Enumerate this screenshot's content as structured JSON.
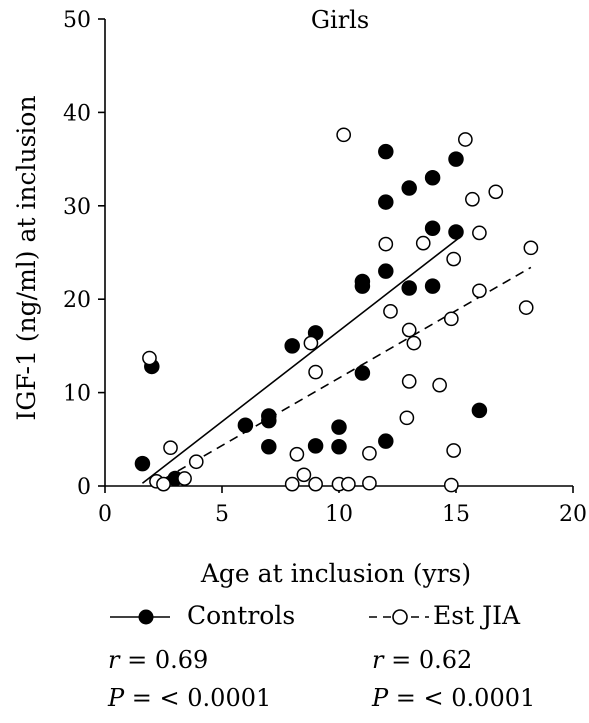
{
  "chart_data": {
    "type": "scatter",
    "title": "Girls",
    "xlabel": "Age at inclusion (yrs)",
    "ylabel": "IGF-1 (ng/ml) at inclusion",
    "xlim": [
      0,
      20
    ],
    "ylim": [
      0,
      50
    ],
    "x_ticks": [
      "0",
      "5",
      "10",
      "15",
      "20"
    ],
    "y_ticks": [
      "0",
      "10",
      "20",
      "30",
      "40",
      "50"
    ],
    "grid": false,
    "legend_position": "bottom",
    "series": [
      {
        "name": "Controls",
        "marker": "filled-circle",
        "line_style": "solid",
        "points": [
          [
            1.6,
            2.4
          ],
          [
            2.0,
            12.8
          ],
          [
            3.0,
            0.8
          ],
          [
            6.0,
            6.5
          ],
          [
            7.0,
            7.5
          ],
          [
            7.0,
            7.0
          ],
          [
            7.0,
            4.2
          ],
          [
            8.0,
            15.0
          ],
          [
            9.0,
            16.4
          ],
          [
            9.0,
            4.3
          ],
          [
            10.0,
            6.3
          ],
          [
            10.0,
            4.2
          ],
          [
            11.0,
            21.9
          ],
          [
            11.0,
            21.4
          ],
          [
            11.0,
            12.1
          ],
          [
            12.0,
            35.8
          ],
          [
            12.0,
            30.4
          ],
          [
            12.0,
            23.0
          ],
          [
            12.0,
            4.8
          ],
          [
            13.0,
            31.9
          ],
          [
            13.0,
            21.2
          ],
          [
            14.0,
            33.0
          ],
          [
            14.0,
            27.6
          ],
          [
            14.0,
            21.4
          ],
          [
            15.0,
            35.0
          ],
          [
            15.0,
            27.2
          ],
          [
            16.0,
            8.1
          ]
        ],
        "regression": {
          "x": [
            1.6,
            15.2
          ],
          "y": [
            0.3,
            26.7
          ]
        },
        "r": "0.69",
        "p": "< 0.0001"
      },
      {
        "name": "Est JIA",
        "marker": "open-circle",
        "line_style": "dashed",
        "points": [
          [
            1.9,
            13.7
          ],
          [
            2.2,
            0.5
          ],
          [
            2.5,
            0.2
          ],
          [
            2.8,
            4.1
          ],
          [
            3.4,
            0.8
          ],
          [
            3.9,
            2.6
          ],
          [
            8.0,
            0.2
          ],
          [
            8.2,
            3.4
          ],
          [
            8.5,
            1.2
          ],
          [
            8.8,
            15.3
          ],
          [
            9.0,
            0.2
          ],
          [
            9.0,
            12.2
          ],
          [
            10.0,
            0.2
          ],
          [
            10.2,
            37.6
          ],
          [
            10.4,
            0.2
          ],
          [
            11.3,
            0.3
          ],
          [
            11.3,
            3.5
          ],
          [
            12.0,
            25.9
          ],
          [
            12.2,
            18.7
          ],
          [
            12.9,
            7.3
          ],
          [
            13.0,
            16.7
          ],
          [
            13.0,
            11.2
          ],
          [
            13.2,
            15.3
          ],
          [
            13.6,
            26.0
          ],
          [
            14.3,
            10.8
          ],
          [
            14.8,
            0.1
          ],
          [
            14.8,
            17.9
          ],
          [
            14.9,
            3.8
          ],
          [
            14.9,
            24.3
          ],
          [
            15.4,
            37.1
          ],
          [
            15.7,
            30.7
          ],
          [
            16.0,
            27.1
          ],
          [
            16.0,
            20.9
          ],
          [
            16.7,
            31.5
          ],
          [
            18.0,
            19.1
          ],
          [
            18.2,
            25.5
          ]
        ],
        "regression": {
          "x": [
            2.0,
            18.2
          ],
          "y": [
            0.0,
            23.4
          ]
        },
        "r": "0.62",
        "p": "< 0.0001"
      }
    ]
  },
  "legend": {
    "controls_label": "Controls",
    "est_jia_label": "Est JIA",
    "r_symbol": "r",
    "p_symbol": "P",
    "eq": " = ",
    "controls_r": "0.69",
    "controls_p": "< 0.0001",
    "est_jia_r": "0.62",
    "est_jia_p": "< 0.0001"
  }
}
